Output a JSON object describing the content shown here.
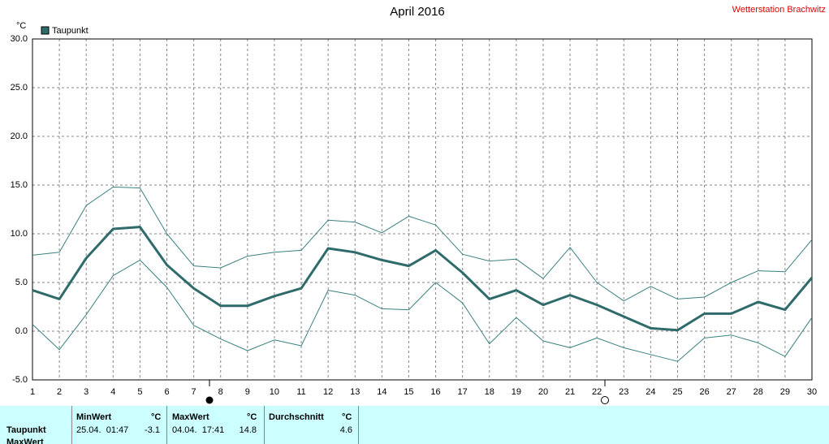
{
  "chart_data": {
    "type": "line",
    "title": "April 2016",
    "subtitle": "Wetterstation Brachwitz",
    "y_unit": "°C",
    "x": [
      1,
      2,
      3,
      4,
      5,
      6,
      7,
      8,
      9,
      10,
      11,
      12,
      13,
      14,
      15,
      16,
      17,
      18,
      19,
      20,
      21,
      22,
      23,
      24,
      25,
      26,
      27,
      28,
      29,
      30
    ],
    "series": [
      {
        "name": "Taupunkt",
        "color": "#2f6b6b",
        "line_width": 3,
        "values": [
          4.2,
          3.3,
          7.5,
          10.5,
          10.7,
          6.8,
          4.4,
          2.6,
          2.6,
          3.6,
          4.4,
          8.5,
          8.1,
          7.3,
          6.7,
          8.3,
          6.0,
          3.3,
          4.2,
          2.7,
          3.7,
          2.7,
          1.5,
          0.3,
          0.1,
          1.8,
          1.8,
          3.0,
          2.2,
          5.5
        ]
      },
      {
        "color": "#3a8080",
        "line_width": 1,
        "values": [
          7.8,
          8.1,
          12.9,
          14.8,
          14.7,
          10.0,
          6.7,
          6.5,
          7.7,
          8.1,
          8.3,
          11.4,
          11.2,
          10.1,
          11.8,
          10.9,
          7.9,
          7.2,
          7.4,
          5.4,
          8.6,
          5.0,
          3.1,
          4.6,
          3.3,
          3.5,
          5.0,
          6.2,
          6.1,
          9.4
        ]
      },
      {
        "color": "#3a8080",
        "line_width": 1,
        "values": [
          0.7,
          -1.9,
          1.7,
          5.7,
          7.3,
          4.5,
          0.6,
          -0.8,
          -2.0,
          -0.9,
          -1.5,
          4.2,
          3.7,
          2.3,
          2.2,
          5.0,
          2.9,
          -1.3,
          1.4,
          -1.0,
          -1.7,
          -0.7,
          -1.7,
          -2.4,
          -3.1,
          -0.7,
          -0.4,
          -1.2,
          -2.6,
          1.4
        ]
      }
    ],
    "xlim": [
      1,
      30
    ],
    "xticks": [
      1,
      2,
      3,
      4,
      5,
      6,
      7,
      8,
      9,
      10,
      11,
      12,
      13,
      14,
      15,
      16,
      17,
      18,
      19,
      20,
      21,
      22,
      23,
      24,
      25,
      26,
      27,
      28,
      29,
      30
    ],
    "ylim": [
      -5,
      30
    ],
    "yticks": [
      {
        "value": -5,
        "label": "-5.0"
      },
      {
        "value": 0,
        "label": "0.0"
      },
      {
        "value": 5,
        "label": "5.0"
      },
      {
        "value": 10,
        "label": "10.0"
      },
      {
        "value": 15,
        "label": "15.0"
      },
      {
        "value": 20,
        "label": "20.0"
      },
      {
        "value": 25,
        "label": "25.0"
      },
      {
        "value": 30,
        "label": "30.0"
      }
    ],
    "grid": true
  },
  "table": {
    "headers": [
      "MinWert",
      "°C",
      "MaxWert",
      "°C",
      "Durchschnitt",
      "°C"
    ],
    "rows": [
      [
        "Taupunkt",
        "25.04.  01:47",
        "-3.1",
        "04.04.  17:41",
        "14.8",
        "4.6"
      ],
      [
        "MaxWert"
      ]
    ]
  }
}
